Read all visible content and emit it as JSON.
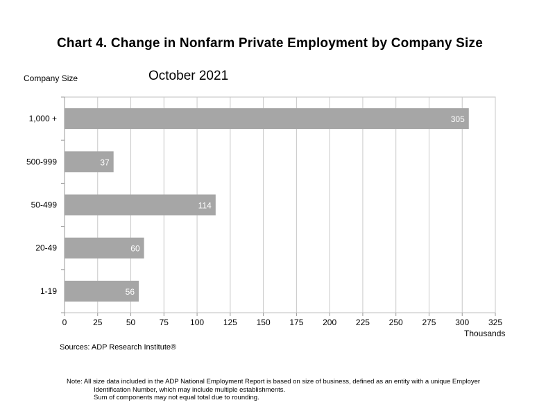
{
  "title": "Chart 4. Change in Nonfarm Private Employment by Company Size",
  "subtitle": "October 2021",
  "source": "Sources: ADP Research Institute®",
  "note": {
    "line1": "Note:  All size data included in the ADP National Employment Report is based on size of business, defined as an entity with a unique Employer",
    "line2": "Identification Number, which may include multiple establishments.",
    "line3": "Sum of components may not equal total due to rounding."
  },
  "chart_data": {
    "type": "bar",
    "orientation": "horizontal",
    "title": "Chart 4. Change in Nonfarm Private Employment by Company Size",
    "subtitle": "October 2021",
    "ylabel": "Company Size",
    "xlabel": "Thousands",
    "categories": [
      "1,000 +",
      "500-999",
      "50-499",
      "20-49",
      "1-19"
    ],
    "values": [
      305,
      37,
      114,
      60,
      56
    ],
    "xlim": [
      0,
      325
    ],
    "xticks": [
      0,
      25,
      50,
      75,
      100,
      125,
      150,
      175,
      200,
      225,
      250,
      275,
      300,
      325
    ],
    "grid": true,
    "legend": "none",
    "bar_color": "#a6a6a6",
    "data_label_color": "#ffffff"
  }
}
